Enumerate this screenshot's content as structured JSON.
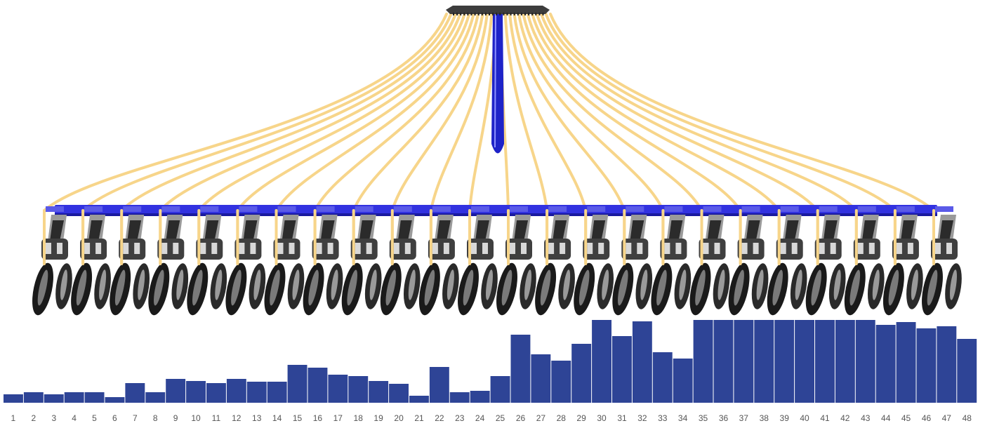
{
  "colors": {
    "hose": "#f7d58a",
    "manifold": "#3d3d3d",
    "down_tube": "#1e23c8",
    "bar_frame": "#3232e0",
    "row_unit": "#2b2b2b",
    "coulter": "#1a1a1a",
    "bar_fill": "#2e4496",
    "axis_text": "#555555"
  },
  "icons": {
    "manifold": "distribution-head-icon",
    "row_unit": "seeder-row-unit-icon"
  },
  "chart_data": {
    "type": "bar",
    "categories": [
      "1",
      "2",
      "3",
      "4",
      "5",
      "6",
      "7",
      "8",
      "9",
      "10",
      "11",
      "12",
      "13",
      "14",
      "15",
      "16",
      "17",
      "18",
      "19",
      "20",
      "21",
      "22",
      "23",
      "24",
      "25",
      "26",
      "27",
      "28",
      "29",
      "30",
      "31",
      "32",
      "33",
      "34",
      "35",
      "36",
      "37",
      "38",
      "39",
      "40",
      "41",
      "42",
      "43",
      "44",
      "45",
      "46",
      "47",
      "48"
    ],
    "values": [
      12,
      15,
      12,
      15,
      15,
      8,
      28,
      15,
      34,
      31,
      28,
      34,
      30,
      30,
      54,
      50,
      40,
      38,
      31,
      27,
      10,
      51,
      15,
      17,
      38,
      97,
      69,
      60,
      84,
      118,
      95,
      116,
      72,
      63,
      118,
      118,
      118,
      118,
      118,
      118,
      118,
      118,
      118,
      111,
      115,
      106,
      109,
      91
    ],
    "ylim": [
      0,
      118
    ]
  }
}
